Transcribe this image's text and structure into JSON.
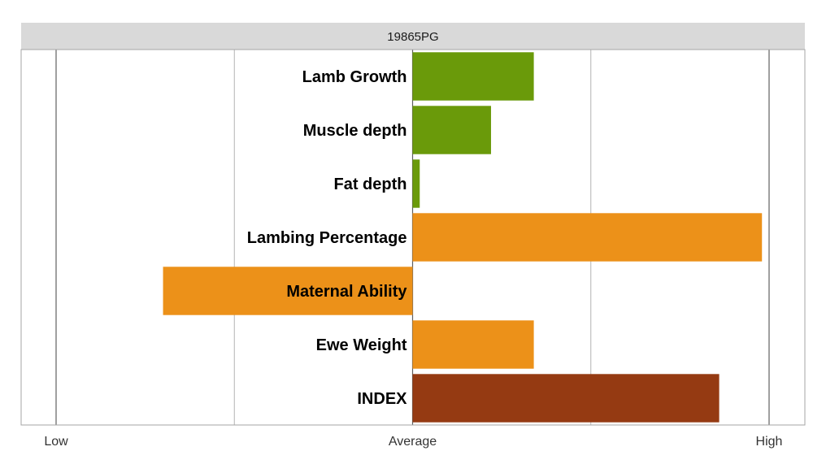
{
  "chart_data": {
    "type": "bar",
    "orientation": "horizontal",
    "title": "19865PG",
    "xlim": [
      -1,
      1
    ],
    "x_ticks": [
      {
        "value": -1,
        "label": "Low"
      },
      {
        "value": 0,
        "label": "Average"
      },
      {
        "value": 1,
        "label": "High"
      }
    ],
    "grid": true,
    "categories": [
      "Lamb Growth",
      "Muscle depth",
      "Fat depth",
      "Lambing Percentage",
      "Maternal Ability",
      "Ewe Weight",
      "INDEX"
    ],
    "values": [
      0.34,
      0.22,
      0.02,
      0.98,
      -0.7,
      0.34,
      0.86
    ],
    "colors": [
      "#6a9a0a",
      "#6a9a0a",
      "#6a9a0a",
      "#ec9119",
      "#ec9119",
      "#ec9119",
      "#953a12"
    ]
  },
  "style": {
    "strip_color": "#d9d9d9",
    "major_grid_color": "#606060",
    "minor_grid_color": "#b3b3b3",
    "panel_border_color": "#a6a6a6"
  }
}
